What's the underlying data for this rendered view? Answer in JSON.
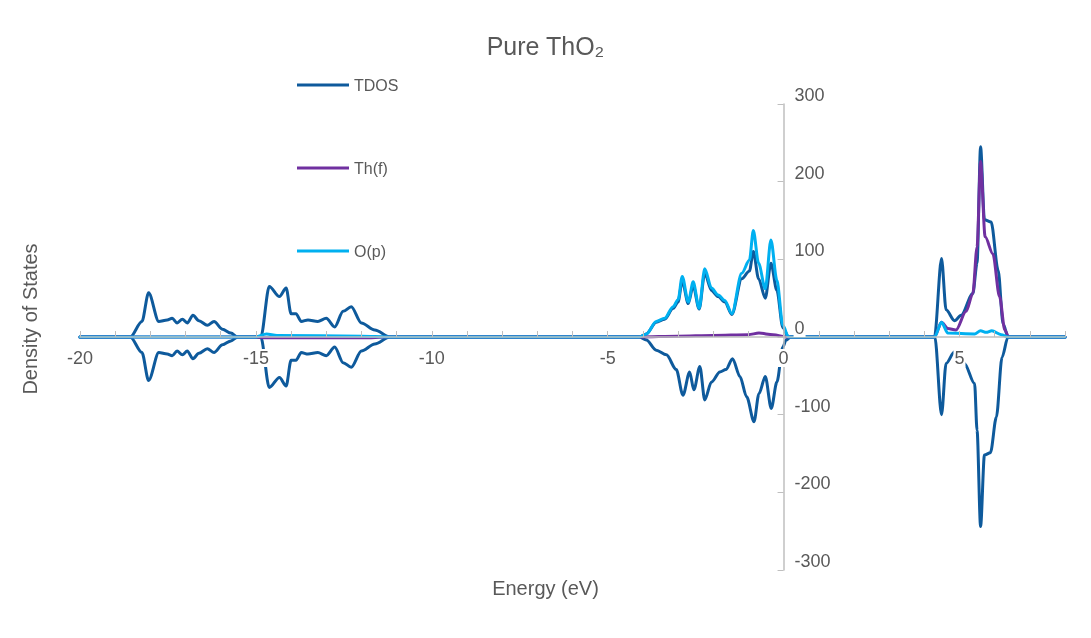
{
  "chart_data": {
    "type": "line",
    "title": "Pure ThO₂",
    "xlabel": "Energy (eV)",
    "ylabel": "Density of States",
    "xlim": [
      -20,
      8
    ],
    "ylim": [
      -300,
      300
    ],
    "xticks": [
      -20,
      {
        "value": -19,
        "label": null
      },
      {
        "value": -18,
        "label": null
      },
      {
        "value": -17,
        "label": null
      },
      {
        "value": -16,
        "label": null
      },
      -15,
      {
        "value": -14,
        "label": null
      },
      {
        "value": -13,
        "label": null
      },
      {
        "value": -12,
        "label": null
      },
      {
        "value": -11,
        "label": null
      },
      -10,
      {
        "value": -9,
        "label": null
      },
      {
        "value": -8,
        "label": null
      },
      {
        "value": -7,
        "label": null
      },
      {
        "value": -6,
        "label": null
      },
      -5,
      {
        "value": -4,
        "label": null
      },
      {
        "value": -3,
        "label": null
      },
      {
        "value": -2,
        "label": null
      },
      {
        "value": -1,
        "label": null
      },
      0,
      {
        "value": 1,
        "label": null
      },
      {
        "value": 2,
        "label": null
      },
      {
        "value": 3,
        "label": null
      },
      {
        "value": 4,
        "label": null
      },
      5,
      {
        "value": 6,
        "label": null
      },
      {
        "value": 7,
        "label": null
      },
      {
        "value": 8,
        "label": null
      }
    ],
    "yticks": [
      -300,
      -200,
      -100,
      0,
      100,
      200,
      300
    ],
    "legend": "top left",
    "marker": "none",
    "series": [
      {
        "name": "TDOS",
        "color": "#0e5a9c",
        "x": [
          -20,
          -18.57,
          -18.24,
          -18.05,
          -17.76,
          -17.52,
          -17.38,
          -17.24,
          -17.09,
          -16.95,
          -16.79,
          -16.62,
          -16.38,
          -16.19,
          -15.95,
          -15.71,
          -15.52,
          -14.86,
          -14.62,
          -14.33,
          -14.14,
          -14.0,
          -13.86,
          -13.71,
          -13.52,
          -13.24,
          -13.0,
          -12.76,
          -12.52,
          -12.29,
          -12.0,
          -11.62,
          -11.19,
          -4.1,
          -3.9,
          -3.62,
          -3.38,
          -3.14,
          -3.0,
          -2.88,
          -2.71,
          -2.57,
          -2.4,
          -2.24,
          -2.05,
          -1.86,
          -1.67,
          -1.47,
          -1.19,
          -0.97,
          -0.86,
          -0.71,
          -0.52,
          -0.36,
          -0.19,
          -0.02,
          0.14,
          4.29,
          4.49,
          4.62,
          4.86,
          5.05,
          5.38,
          5.5,
          5.6,
          5.71,
          5.9,
          6.1,
          6.24,
          6.38,
          8
        ],
        "values": [
          0,
          0,
          20,
          57,
          20,
          22,
          24,
          18,
          23,
          18,
          28,
          21,
          15,
          20,
          10,
          5,
          0,
          0,
          65,
          52,
          63,
          30,
          30,
          20,
          22,
          20,
          24,
          13,
          33,
          39,
          18,
          9,
          0,
          0,
          4,
          19,
          23,
          37,
          45,
          72,
          43,
          66,
          36,
          82,
          60,
          52,
          45,
          29,
          75,
          85,
          110,
          75,
          50,
          95,
          60,
          12,
          0,
          0,
          101,
          35,
          21,
          28,
          56,
          95,
          245,
          151,
          148,
          86,
          17,
          0,
          0
        ]
      },
      {
        "color": "#0e5a9c",
        "x": [
          -20,
          -18.57,
          -18.24,
          -18.05,
          -17.76,
          -17.52,
          -17.38,
          -17.24,
          -17.09,
          -16.95,
          -16.79,
          -16.62,
          -16.38,
          -16.19,
          -15.95,
          -15.71,
          -15.52,
          -14.86,
          -14.62,
          -14.33,
          -14.14,
          -14.0,
          -13.86,
          -13.71,
          -13.52,
          -13.24,
          -13.0,
          -12.76,
          -12.52,
          -12.29,
          -12.0,
          -11.62,
          -11.19,
          -4.1,
          -3.9,
          -3.62,
          -3.33,
          -3.05,
          -2.86,
          -2.67,
          -2.55,
          -2.38,
          -2.24,
          -2.05,
          -1.81,
          -1.64,
          -1.45,
          -1.24,
          -1.05,
          -0.84,
          -0.7,
          -0.52,
          -0.35,
          -0.19,
          -0.02,
          0.07,
          0.2,
          4.3,
          4.49,
          4.62,
          4.86,
          5.14,
          5.43,
          5.5,
          5.6,
          5.71,
          5.88,
          6.05,
          6.21,
          6.38,
          8
        ],
        "values": [
          0,
          0,
          -20,
          -56,
          -20,
          -22,
          -24,
          -18,
          -23,
          -18,
          -28,
          -21,
          -15,
          -20,
          -10,
          -5,
          0,
          0,
          -65,
          -52,
          -63,
          -30,
          -30,
          -20,
          -22,
          -20,
          -24,
          -13,
          -33,
          -39,
          -18,
          -9,
          0,
          0,
          -4,
          -17,
          -23,
          -42,
          -75,
          -45,
          -68,
          -38,
          -81,
          -58,
          -45,
          -42,
          -28,
          -51,
          -77,
          -109,
          -73,
          -51,
          -92,
          -58,
          -13,
          -4,
          0,
          0,
          -100,
          -34,
          -19,
          -34,
          -60,
          -120,
          -244,
          -152,
          -149,
          -103,
          -26,
          0,
          0
        ]
      },
      {
        "name": "Th(f)",
        "color": "#7030a0",
        "x": [
          -20,
          -15,
          -14.7,
          -12,
          -11.2,
          -4.1,
          -3,
          -2,
          -1,
          -0.7,
          -0.3,
          0.1,
          4.29,
          4.49,
          4.67,
          4.9,
          5.19,
          5.38,
          5.5,
          5.6,
          5.73,
          5.95,
          6.14,
          6.29,
          6.4,
          8
        ],
        "values": [
          0,
          0,
          -1,
          -1,
          0,
          0,
          1,
          2,
          3,
          5,
          3,
          0,
          0,
          19,
          11,
          9,
          33,
          56,
          116,
          226,
          129,
          107,
          52,
          9,
          0,
          0
        ]
      },
      {
        "name": "O(p)",
        "color": "#00b0f0",
        "x": [
          -20,
          -15,
          -14.7,
          -14.4,
          -12,
          -11.2,
          -4.1,
          -3.9,
          -3.62,
          -3.38,
          -3.14,
          -3.0,
          -2.88,
          -2.71,
          -2.57,
          -2.4,
          -2.24,
          -2.05,
          -1.86,
          -1.67,
          -1.47,
          -1.19,
          -0.97,
          -0.86,
          -0.71,
          -0.52,
          -0.36,
          -0.19,
          -0.02,
          0.14,
          4.29,
          4.49,
          4.67,
          5.43,
          5.6,
          5.76,
          5.92,
          6.19,
          6.38,
          8
        ],
        "values": [
          0,
          0,
          4,
          2,
          1,
          0,
          0,
          4,
          20,
          24,
          39,
          48,
          78,
          45,
          71,
          37,
          88,
          63,
          54,
          47,
          30,
          82,
          99,
          137,
          95,
          62,
          125,
          73,
          15,
          0,
          0,
          19,
          5,
          4,
          8,
          6,
          8,
          3,
          0,
          0
        ]
      }
    ]
  }
}
